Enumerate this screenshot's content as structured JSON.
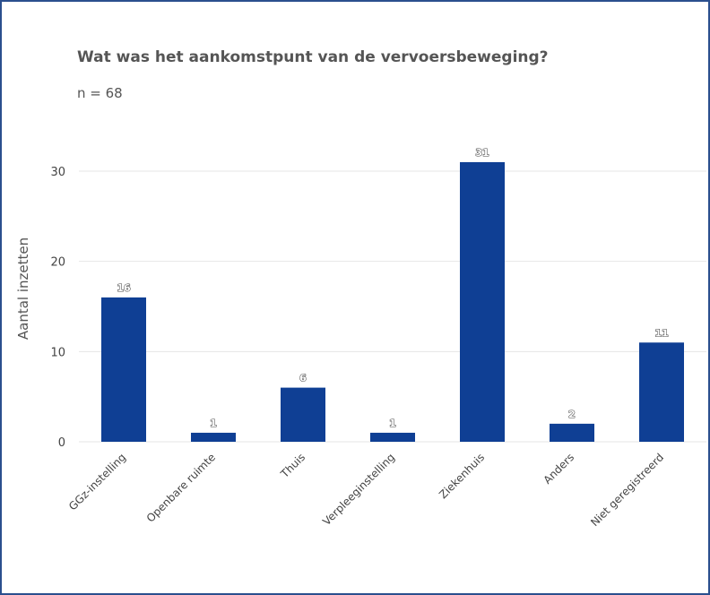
{
  "chart_data": {
    "type": "bar",
    "title": "Wat was het aankomstpunt van de vervoersbeweging?",
    "subtitle": "n = 68",
    "xlabel": "",
    "ylabel": "Aantal inzetten",
    "categories": [
      "GGz-instelling",
      "Openbare ruimte",
      "Thuis",
      "Verpleeginstelling",
      "Ziekenhuis",
      "Anders",
      "Niet geregistreerd"
    ],
    "values": [
      16,
      1,
      6,
      1,
      31,
      2,
      11
    ],
    "ylim": [
      0,
      35
    ],
    "yticks": [
      0,
      10,
      20,
      30
    ],
    "grid": true,
    "legend": "none",
    "bar_color": "#0f3f94",
    "grid_color": "#e6e6e6",
    "frame_color": "#2b4f8e"
  }
}
